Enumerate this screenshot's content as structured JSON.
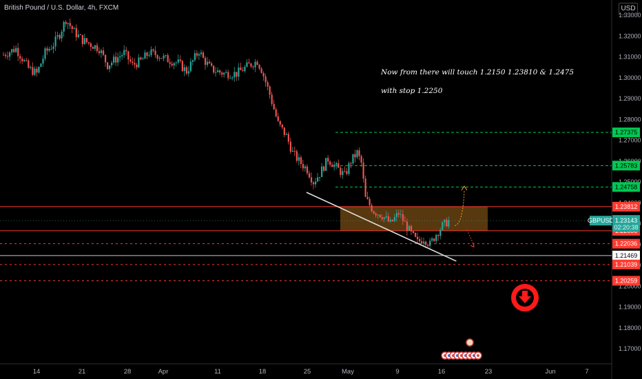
{
  "header": {
    "title": "British Pound / U.S. Dollar, 4h, FXCM",
    "currency": "USD"
  },
  "annotations": {
    "line1": "Now from there will touch 1.2150 1.23810 & 1.2475",
    "line2": "with stop 1.2250"
  },
  "colors": {
    "background": "#000000",
    "up": "#26a69a",
    "down": "#ef5350",
    "resistance": "#ff3b30",
    "target": "#00c853",
    "zone": "#a0661c",
    "trend": "#e0e0e0",
    "ticker": "#26a69a",
    "path_up": "#f5a623",
    "path_down": "#ff3b30"
  },
  "chart_data": {
    "type": "candlestick",
    "symbol": "GBPUSD",
    "timeframe": "4h",
    "price_range": [
      1.165,
      1.335
    ],
    "y_ticks": [
      "1.33000",
      "1.32000",
      "1.31000",
      "1.30000",
      "1.29000",
      "1.28000",
      "1.27000",
      "1.26000",
      "1.25000",
      "1.24000",
      "1.23000",
      "1.22000",
      "1.21000",
      "1.20000",
      "1.19000",
      "1.18000",
      "1.17000"
    ],
    "x_ticks": [
      "14",
      "21",
      "28",
      "Apr",
      "11",
      "18",
      "25",
      "May",
      "9",
      "16",
      "23",
      "Jun",
      "7"
    ],
    "last_price": "1.23143",
    "countdown": "02:20:38",
    "close_path": [
      [
        0,
        1.311
      ],
      [
        6,
        1.314
      ],
      [
        12,
        1.3045
      ],
      [
        16,
        1.302
      ],
      [
        20,
        1.312
      ],
      [
        24,
        1.316
      ],
      [
        27,
        1.321
      ],
      [
        30,
        1.328
      ],
      [
        34,
        1.322
      ],
      [
        38,
        1.318
      ],
      [
        42,
        1.316
      ],
      [
        46,
        1.314
      ],
      [
        50,
        1.306
      ],
      [
        54,
        1.309
      ],
      [
        58,
        1.312
      ],
      [
        62,
        1.306
      ],
      [
        66,
        1.308
      ],
      [
        70,
        1.312
      ],
      [
        74,
        1.311
      ],
      [
        78,
        1.309
      ],
      [
        84,
        1.307
      ],
      [
        88,
        1.303
      ],
      [
        91,
        1.308
      ],
      [
        94,
        1.313
      ],
      [
        96,
        1.309
      ],
      [
        100,
        1.304
      ],
      [
        106,
        1.302
      ],
      [
        112,
        1.302
      ],
      [
        118,
        1.306
      ],
      [
        122,
        1.308
      ],
      [
        124,
        1.304
      ],
      [
        128,
        1.292
      ],
      [
        132,
        1.278
      ],
      [
        136,
        1.272
      ],
      [
        139,
        1.264
      ],
      [
        142,
        1.26
      ],
      [
        146,
        1.256
      ],
      [
        149,
        1.25
      ],
      [
        152,
        1.254
      ],
      [
        156,
        1.261
      ],
      [
        160,
        1.257
      ],
      [
        164,
        1.253
      ],
      [
        167,
        1.26
      ],
      [
        170,
        1.264
      ],
      [
        172,
        1.259
      ],
      [
        174,
        1.242
      ],
      [
        178,
        1.236
      ],
      [
        182,
        1.234
      ],
      [
        186,
        1.23
      ],
      [
        190,
        1.235
      ],
      [
        193,
        1.23
      ],
      [
        196,
        1.225
      ],
      [
        199,
        1.221
      ],
      [
        202,
        1.223
      ],
      [
        205,
        1.22
      ],
      [
        208,
        1.225
      ],
      [
        211,
        1.229
      ],
      [
        214,
        1.2314
      ]
    ],
    "levels": [
      {
        "price": 1.27375,
        "label": "1.27375",
        "kind": "target"
      },
      {
        "price": 1.25783,
        "label": "1.25783",
        "kind": "target"
      },
      {
        "price": 1.24758,
        "label": "1.24758",
        "kind": "target"
      },
      {
        "price": 1.23812,
        "label": "1.23812",
        "kind": "resistance"
      },
      {
        "price": 1.22656,
        "label": "1.22656",
        "kind": "resistance"
      },
      {
        "price": 1.22036,
        "label": "1.22036",
        "kind": "dashed"
      },
      {
        "price": 1.21469,
        "label": "1.21469",
        "kind": "support"
      },
      {
        "price": 1.21039,
        "label": "1.21039",
        "kind": "dashed"
      },
      {
        "price": 1.20259,
        "label": "1.20259",
        "kind": "dashed"
      }
    ],
    "zone": {
      "from": 1.2265,
      "to": 1.2382
    },
    "trendline": [
      [
        146,
        1.245
      ],
      [
        218,
        1.212
      ]
    ]
  }
}
